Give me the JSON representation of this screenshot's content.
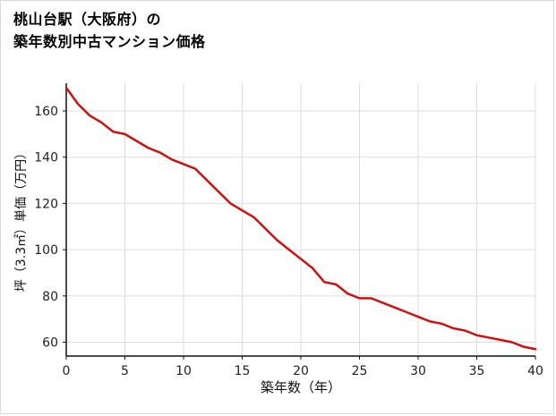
{
  "page": {
    "border_color": "#d9d9d9",
    "background_color": "#ffffff"
  },
  "chart_data": {
    "type": "line",
    "title": "桃山台駅（大阪府）の築年数別中古マンション価格",
    "title_lines": [
      "桃山台駅（大阪府）の",
      "築年数別中古マンション価格"
    ],
    "xlabel": "築年数（年）",
    "ylabel": "坪（3.3㎡）単価（万円）",
    "x": [
      0,
      1,
      2,
      3,
      4,
      5,
      6,
      7,
      8,
      9,
      10,
      11,
      12,
      13,
      14,
      15,
      16,
      17,
      18,
      19,
      20,
      21,
      22,
      23,
      24,
      25,
      26,
      27,
      28,
      29,
      30,
      31,
      32,
      33,
      34,
      35,
      36,
      37,
      38,
      39,
      40
    ],
    "values": [
      170,
      163,
      158,
      155,
      151,
      150,
      147,
      144,
      142,
      139,
      137,
      135,
      130,
      125,
      120,
      117,
      114,
      109,
      104,
      100,
      96,
      92,
      86,
      85,
      81,
      79,
      79,
      77,
      75,
      73,
      71,
      69,
      68,
      66,
      65,
      63,
      62,
      61,
      60,
      58,
      57
    ],
    "xlim": [
      0,
      40
    ],
    "ylim": [
      54,
      172
    ],
    "xticks": [
      0,
      5,
      10,
      15,
      20,
      25,
      30,
      35,
      40
    ],
    "yticks": [
      60,
      80,
      100,
      120,
      140,
      160
    ],
    "grid": true,
    "legend": "none",
    "line_color": "#cc1111",
    "grid_color": "#dddddd",
    "axis_color": "#111111",
    "tick_text_color": "#222222"
  }
}
